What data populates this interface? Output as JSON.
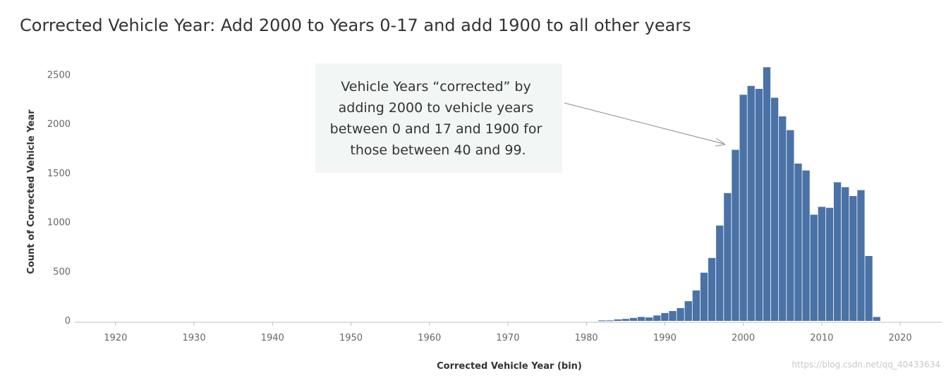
{
  "chart_data": {
    "type": "bar",
    "title": "Corrected Vehicle Year: Add 2000 to Years 0-17 and add 1900 to all other years",
    "xlabel": "Corrected Vehicle Year (bin)",
    "ylabel": "Count of Corrected Vehicle Year",
    "x_ticks": [
      "1920",
      "1930",
      "1940",
      "1950",
      "1960",
      "1970",
      "1980",
      "1990",
      "2000",
      "2010",
      "2020"
    ],
    "y_ticks": [
      "0",
      "500",
      "1000",
      "1500",
      "2000",
      "2500"
    ],
    "xlim": [
      1914.8,
      2025.3
    ],
    "ylim": [
      0,
      2690
    ],
    "bin_width": 1,
    "grid": false,
    "bar_color": "#4a72a6",
    "annotation": {
      "lines": [
        "Vehicle Years “corrected” by",
        "adding 2000 to vehicle years",
        "between 0 and 17 and 1900 for",
        "those between 40 and 99."
      ]
    },
    "watermark": "https://blog.csdn.net/qq_40433634",
    "years": [
      1982,
      1983,
      1984,
      1985,
      1986,
      1987,
      1988,
      1989,
      1990,
      1991,
      1992,
      1993,
      1994,
      1995,
      1996,
      1997,
      1998,
      1999,
      2000,
      2001,
      2002,
      2003,
      2004,
      2005,
      2006,
      2007,
      2008,
      2009,
      2010,
      2011,
      2012,
      2013,
      2014,
      2015,
      2016,
      2017
    ],
    "values": [
      5,
      5,
      15,
      20,
      30,
      40,
      35,
      55,
      80,
      100,
      130,
      200,
      310,
      490,
      640,
      970,
      1300,
      1740,
      2300,
      2390,
      2360,
      2580,
      2270,
      2080,
      1940,
      1600,
      1530,
      1080,
      1160,
      1150,
      1410,
      1360,
      1270,
      1330,
      660,
      40
    ]
  }
}
